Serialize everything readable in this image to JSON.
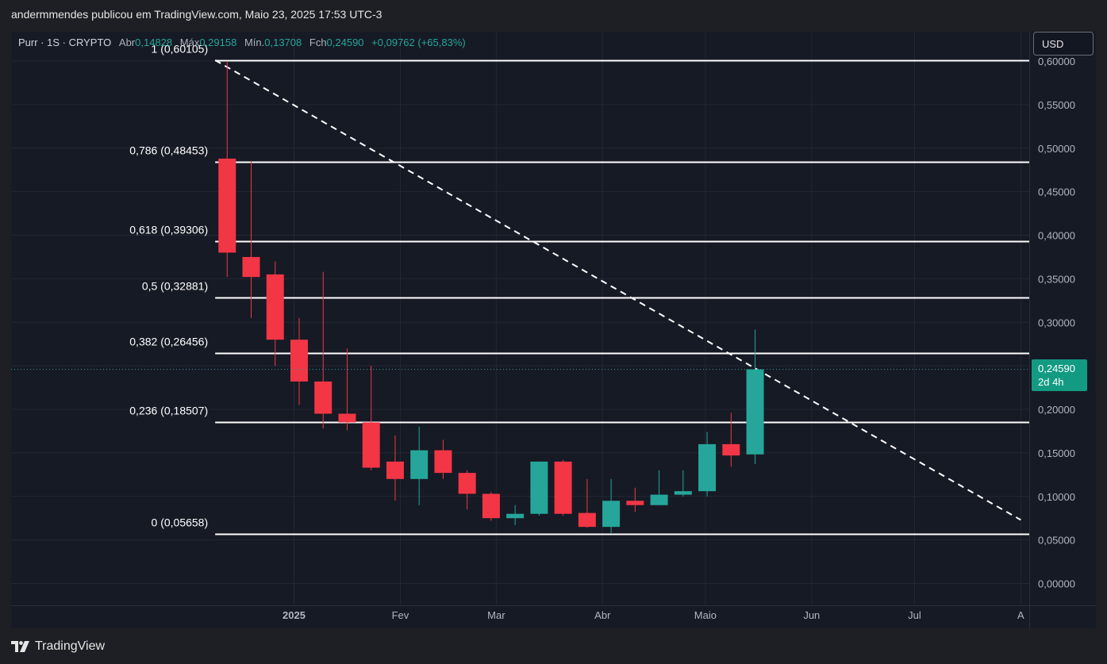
{
  "header": {
    "publisher_text": "andermmendes publicou em TradingView.com, Maio 23, 2025 17:53 UTC-3"
  },
  "legend": {
    "symbol": "Purr · 1S · CRYPTO",
    "open_label": "Abr",
    "open_value": "0,14828",
    "high_label": "Máx",
    "high_value": "0,29158",
    "low_label": "Mín.",
    "low_value": "0,13708",
    "close_label": "Fch",
    "close_value": "0,24590",
    "change": "+0,09762 (+65,83%)"
  },
  "currency_button": "USD",
  "price_badge": {
    "price": "0,24590",
    "countdown": "2d 4h"
  },
  "footer": {
    "brand": "TradingView"
  },
  "colors": {
    "up": "#26a69a",
    "down": "#f23645",
    "background": "#161a25",
    "fib": "#ffffff"
  },
  "chart_data": {
    "type": "candlestick",
    "y_range": [
      0.0,
      0.6
    ],
    "y_ticks": [
      "0,00000",
      "0,05000",
      "0,10000",
      "0,15000",
      "0,20000",
      "0,25000",
      "0,30000",
      "0,35000",
      "0,40000",
      "0,45000",
      "0,50000",
      "0,55000",
      "0,60000"
    ],
    "y_tick_values": [
      0,
      0.05,
      0.1,
      0.15,
      0.2,
      0.25,
      0.3,
      0.35,
      0.4,
      0.45,
      0.5,
      0.55,
      0.6
    ],
    "x_labels": [
      {
        "label": "2025",
        "date": "2025-01-01"
      },
      {
        "label": "Fev",
        "date": "2025-02-01"
      },
      {
        "label": "Mar",
        "date": "2025-03-01"
      },
      {
        "label": "Abr",
        "date": "2025-04-01"
      },
      {
        "label": "Maio",
        "date": "2025-05-01"
      },
      {
        "label": "Jun",
        "date": "2025-06-01"
      },
      {
        "label": "Jul",
        "date": "2025-07-01"
      },
      {
        "label": "A",
        "date": "2025-08-01"
      }
    ],
    "candles": [
      {
        "date": "2024-12-09",
        "o": 0.488,
        "h": 0.6,
        "l": 0.352,
        "c": 0.38
      },
      {
        "date": "2024-12-16",
        "o": 0.375,
        "h": 0.485,
        "l": 0.305,
        "c": 0.352
      },
      {
        "date": "2024-12-23",
        "o": 0.355,
        "h": 0.37,
        "l": 0.25,
        "c": 0.28
      },
      {
        "date": "2024-12-30",
        "o": 0.28,
        "h": 0.305,
        "l": 0.205,
        "c": 0.232
      },
      {
        "date": "2025-01-06",
        "o": 0.232,
        "h": 0.358,
        "l": 0.178,
        "c": 0.195
      },
      {
        "date": "2025-01-13",
        "o": 0.195,
        "h": 0.27,
        "l": 0.176,
        "c": 0.185
      },
      {
        "date": "2025-01-20",
        "o": 0.185,
        "h": 0.25,
        "l": 0.13,
        "c": 0.133
      },
      {
        "date": "2025-01-27",
        "o": 0.14,
        "h": 0.17,
        "l": 0.095,
        "c": 0.12
      },
      {
        "date": "2025-02-03",
        "o": 0.12,
        "h": 0.18,
        "l": 0.09,
        "c": 0.153
      },
      {
        "date": "2025-02-10",
        "o": 0.153,
        "h": 0.165,
        "l": 0.12,
        "c": 0.127
      },
      {
        "date": "2025-02-17",
        "o": 0.127,
        "h": 0.13,
        "l": 0.085,
        "c": 0.103
      },
      {
        "date": "2025-02-24",
        "o": 0.103,
        "h": 0.105,
        "l": 0.072,
        "c": 0.075
      },
      {
        "date": "2025-03-03",
        "o": 0.075,
        "h": 0.09,
        "l": 0.067,
        "c": 0.08
      },
      {
        "date": "2025-03-10",
        "o": 0.08,
        "h": 0.14,
        "l": 0.078,
        "c": 0.14
      },
      {
        "date": "2025-03-17",
        "o": 0.14,
        "h": 0.142,
        "l": 0.078,
        "c": 0.08
      },
      {
        "date": "2025-03-24",
        "o": 0.081,
        "h": 0.12,
        "l": 0.064,
        "c": 0.065
      },
      {
        "date": "2025-03-31",
        "o": 0.065,
        "h": 0.12,
        "l": 0.058,
        "c": 0.095
      },
      {
        "date": "2025-04-07",
        "o": 0.095,
        "h": 0.11,
        "l": 0.082,
        "c": 0.09
      },
      {
        "date": "2025-04-14",
        "o": 0.09,
        "h": 0.13,
        "l": 0.09,
        "c": 0.102
      },
      {
        "date": "2025-04-21",
        "o": 0.102,
        "h": 0.13,
        "l": 0.1,
        "c": 0.106
      },
      {
        "date": "2025-04-28",
        "o": 0.106,
        "h": 0.174,
        "l": 0.1,
        "c": 0.16
      },
      {
        "date": "2025-05-05",
        "o": 0.16,
        "h": 0.196,
        "l": 0.134,
        "c": 0.147
      },
      {
        "date": "2025-05-12",
        "o": 0.14828,
        "h": 0.29158,
        "l": 0.13708,
        "c": 0.2459
      }
    ],
    "fib_levels": [
      {
        "label": "1 (0,60105)",
        "value": 0.60105
      },
      {
        "label": "0,786 (0,48453)",
        "value": 0.48453
      },
      {
        "label": "0,618 (0,39306)",
        "value": 0.39306
      },
      {
        "label": "0,5 (0,32881)",
        "value": 0.32881
      },
      {
        "label": "0,382 (0,26456)",
        "value": 0.26456
      },
      {
        "label": "0,236 (0,18507)",
        "value": 0.18507
      },
      {
        "label": "0 (0,05658)",
        "value": 0.05658
      }
    ],
    "fib_start_date": "2024-12-09",
    "trendline": {
      "start": {
        "date": "2024-12-09",
        "value": 0.601
      },
      "end": {
        "date": "2025-08-01",
        "value": 0.073
      }
    },
    "current_price": 0.2459
  }
}
